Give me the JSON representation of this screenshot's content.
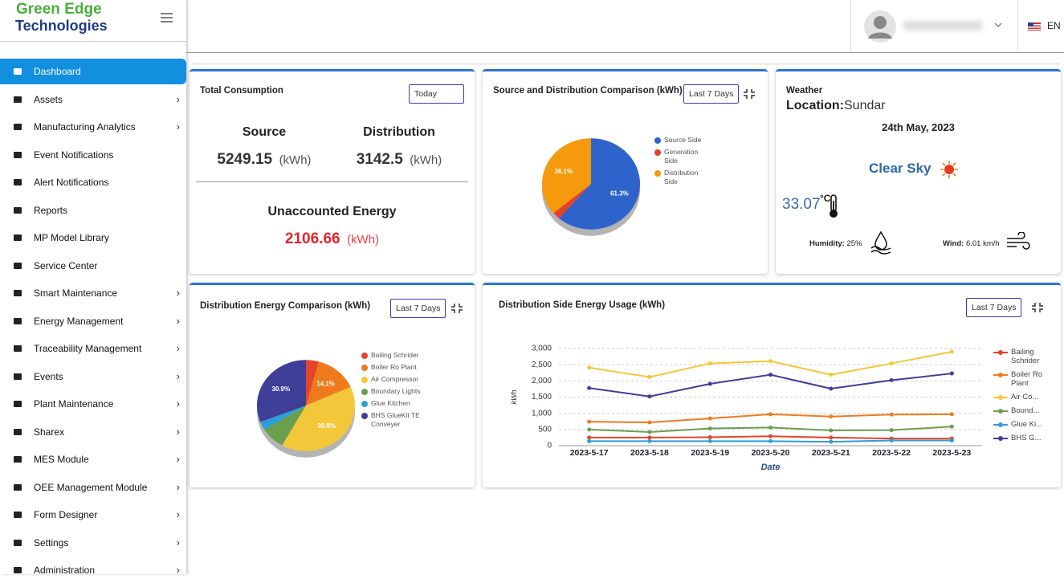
{
  "brand": {
    "line1": "Green Edge",
    "line2": "Technologies"
  },
  "header": {
    "language": "EN"
  },
  "menu": [
    {
      "label": "Dashboard",
      "active": true,
      "has_submenu": false
    },
    {
      "label": "Assets",
      "has_submenu": true
    },
    {
      "label": "Manufacturing Analytics",
      "has_submenu": true
    },
    {
      "label": "Event Notifications",
      "has_submenu": false
    },
    {
      "label": "Alert Notifications",
      "has_submenu": false
    },
    {
      "label": "Reports",
      "has_submenu": false
    },
    {
      "label": "MP Model Library",
      "has_submenu": false
    },
    {
      "label": "Service Center",
      "has_submenu": false
    },
    {
      "label": "Smart Maintenance",
      "has_submenu": true
    },
    {
      "label": "Energy Management",
      "has_submenu": true
    },
    {
      "label": "Traceability Management",
      "has_submenu": true
    },
    {
      "label": "Events",
      "has_submenu": true
    },
    {
      "label": "Plant Maintenance",
      "has_submenu": true
    },
    {
      "label": "Sharex",
      "has_submenu": true
    },
    {
      "label": "MES Module",
      "has_submenu": true
    },
    {
      "label": "OEE Management Module",
      "has_submenu": true
    },
    {
      "label": "Form Designer",
      "has_submenu": true
    },
    {
      "label": "Settings",
      "has_submenu": true
    },
    {
      "label": "Administration",
      "has_submenu": true
    }
  ],
  "total_consumption": {
    "title": "Total Consumption",
    "filter": "Today",
    "source": {
      "label": "Source",
      "value": 5249.15,
      "unit": "(kWh)"
    },
    "distribution": {
      "label": "Distribution",
      "value": 3142.5,
      "unit": "(kWh)"
    },
    "unaccounted": {
      "label": "Unaccounted Energy",
      "value": 2106.66,
      "unit": "(kWh)"
    }
  },
  "source_distribution": {
    "type": "pie",
    "title": "Source and Distribution Comparison (kWh)",
    "filter": "Last 7 Days",
    "categories": [
      "Source Side",
      "Generation Side",
      "Distribution Side"
    ],
    "values": [
      61.3,
      2.6,
      36.1
    ],
    "value_labels": [
      "61.3%",
      null,
      "36.1%"
    ],
    "colors": [
      "#2f63cc",
      "#e0432b",
      "#f59a0c"
    ]
  },
  "weather": {
    "title": "Weather",
    "location_label": "Location:",
    "location": "Sundar",
    "date": "24th May, 2023",
    "condition": "Clear Sky",
    "temperature": 33.07,
    "temperature_unit": "°C",
    "humidity_label": "Humidity:",
    "humidity": "25%",
    "wind_label": "Wind:",
    "wind": "6.01 km/h"
  },
  "distribution_energy": {
    "type": "pie",
    "title": "Distribution Energy Comparison (kWh)",
    "filter": "Last 7 Days",
    "categories": [
      "Bailing Schrider",
      "Boiler Ro Plant",
      "Air Compressor",
      "Boundary Lights",
      "Glue Kitchen",
      "BHS GlueKit TE Conveyer"
    ],
    "values": [
      4.2,
      14.1,
      39.8,
      8.0,
      3.0,
      30.9
    ],
    "value_labels": [
      null,
      "14.1%",
      "39.8%",
      null,
      null,
      "30.9%"
    ],
    "colors": [
      "#e5442c",
      "#ef7a1e",
      "#f2c83a",
      "#6a9f4e",
      "#2e9ed6",
      "#3e3f99"
    ]
  },
  "line_chart": {
    "type": "line",
    "title": "Distribution Side Energy Usage (kWh)",
    "filter": "Last 7 Days",
    "x_label": "Date",
    "y_label": "kWh",
    "categories": [
      "2023-5-17",
      "2023-5-18",
      "2023-5-19",
      "2023-5-20",
      "2023-5-21",
      "2023-5-22",
      "2023-5-23"
    ],
    "ylim": [
      0,
      3000
    ],
    "yticks": [
      0,
      500,
      {
        "value": 1000,
        "label": "1,000"
      },
      {
        "value": 1500,
        "label": "1,500"
      },
      {
        "value": 2000,
        "label": "2,000"
      },
      {
        "value": 2500,
        "label": "2,500"
      },
      {
        "value": 3000,
        "label": "3,000"
      }
    ],
    "grid": true,
    "series": [
      {
        "name": "Bailing Schrider",
        "color": "#e5442c",
        "values": [
          250,
          250,
          260,
          290,
          250,
          220,
          220
        ]
      },
      {
        "name": "Boiler Ro Plant",
        "color": "#ef7a1e",
        "values": [
          740,
          720,
          840,
          970,
          900,
          960,
          970
        ]
      },
      {
        "name": "Air Co...",
        "color": "#f2c83a",
        "values": [
          2410,
          2120,
          2540,
          2610,
          2190,
          2540,
          2900
        ]
      },
      {
        "name": "Bound...",
        "color": "#6a9f4e",
        "values": [
          500,
          420,
          530,
          560,
          470,
          480,
          590
        ]
      },
      {
        "name": "Glue Ki...",
        "color": "#2e9ed6",
        "values": [
          140,
          140,
          140,
          140,
          120,
          160,
          160
        ]
      },
      {
        "name": "BHS G...",
        "color": "#3e3f99",
        "values": [
          1780,
          1520,
          1910,
          2190,
          1760,
          2020,
          2230
        ]
      }
    ]
  }
}
